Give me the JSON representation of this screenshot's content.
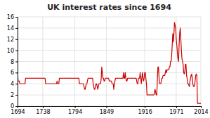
{
  "chart_data": {
    "type": "line",
    "title": "UK interest rates since 1694",
    "color": "#cc0000",
    "grid": true,
    "xlim": [
      1694,
      2014
    ],
    "ylim": [
      0,
      16
    ],
    "xticks": [
      1694,
      1738,
      1794,
      1849,
      1916,
      1971,
      2014
    ],
    "yticks": [
      0,
      2,
      4,
      6,
      8,
      10,
      12,
      14,
      16
    ],
    "x": [
      1694,
      1695,
      1696,
      1697,
      1698,
      1699,
      1700,
      1701,
      1702,
      1703,
      1704,
      1705,
      1706,
      1707,
      1708,
      1709,
      1710,
      1711,
      1712,
      1713,
      1714,
      1715,
      1716,
      1717,
      1718,
      1719,
      1720,
      1721,
      1722,
      1723,
      1724,
      1725,
      1726,
      1727,
      1728,
      1729,
      1730,
      1731,
      1732,
      1733,
      1734,
      1735,
      1736,
      1737,
      1738,
      1739,
      1740,
      1741,
      1742,
      1743,
      1744,
      1745,
      1746,
      1747,
      1748,
      1749,
      1750,
      1751,
      1752,
      1753,
      1754,
      1755,
      1756,
      1757,
      1758,
      1759,
      1760,
      1761,
      1762,
      1763,
      1764,
      1765,
      1766,
      1767,
      1768,
      1769,
      1770,
      1771,
      1772,
      1773,
      1774,
      1775,
      1776,
      1777,
      1778,
      1779,
      1780,
      1781,
      1782,
      1783,
      1784,
      1785,
      1786,
      1787,
      1788,
      1789,
      1790,
      1791,
      1792,
      1793,
      1794,
      1795,
      1796,
      1797,
      1798,
      1799,
      1800,
      1801,
      1802,
      1803,
      1804,
      1805,
      1806,
      1807,
      1808,
      1809,
      1810,
      1811,
      1812,
      1813,
      1814,
      1815,
      1816,
      1817,
      1818,
      1819,
      1820,
      1821,
      1822,
      1823,
      1824,
      1825,
      1826,
      1827,
      1828,
      1829,
      1830,
      1831,
      1832,
      1833,
      1834,
      1835,
      1836,
      1837,
      1838,
      1839,
      1840,
      1841,
      1842,
      1843,
      1844,
      1845,
      1846,
      1847,
      1848,
      1849,
      1850,
      1851,
      1852,
      1853,
      1854,
      1855,
      1856,
      1857,
      1858,
      1859,
      1860,
      1861,
      1862,
      1863,
      1864,
      1865,
      1866,
      1867,
      1868,
      1869,
      1870,
      1871,
      1872,
      1873,
      1874,
      1875,
      1876,
      1877,
      1878,
      1879,
      1880,
      1881,
      1882,
      1883,
      1884,
      1885,
      1886,
      1887,
      1888,
      1889,
      1890,
      1891,
      1892,
      1893,
      1894,
      1895,
      1896,
      1897,
      1898,
      1899,
      1900,
      1901,
      1902,
      1903,
      1904,
      1905,
      1906,
      1907,
      1908,
      1909,
      1910,
      1911,
      1912,
      1913,
      1914,
      1915,
      1916,
      1917,
      1918,
      1919,
      1920,
      1921,
      1922,
      1923,
      1924,
      1925,
      1926,
      1927,
      1928,
      1929,
      1930,
      1931,
      1932,
      1933,
      1934,
      1935,
      1936,
      1937,
      1938,
      1939,
      1940,
      1941,
      1942,
      1943,
      1944,
      1945,
      1946,
      1947,
      1948,
      1949,
      1950,
      1951,
      1952,
      1953,
      1954,
      1955,
      1956,
      1957,
      1958,
      1959,
      1960,
      1961,
      1962,
      1963,
      1964,
      1965,
      1966,
      1967,
      1968,
      1969,
      1970,
      1971,
      1972,
      1973,
      1974,
      1975,
      1976,
      1977,
      1978,
      1979,
      1980,
      1981,
      1982,
      1983,
      1984,
      1985,
      1986,
      1987,
      1988,
      1989,
      1990,
      1991,
      1992,
      1993,
      1994,
      1995,
      1996,
      1997,
      1998,
      1999,
      2000,
      2001,
      2002,
      2003,
      2004,
      2005,
      2006,
      2007,
      2008,
      2009,
      2010,
      2011,
      2012,
      2013,
      2014
    ],
    "values": [
      6.0,
      4.5,
      4.5,
      4.5,
      4.0,
      4.0,
      4.0,
      4.0,
      4.0,
      4.0,
      4.0,
      4.0,
      4.0,
      4.0,
      5.0,
      5.0,
      5.0,
      5.0,
      5.0,
      5.0,
      5.0,
      5.0,
      5.0,
      5.0,
      5.0,
      5.0,
      5.0,
      5.0,
      5.0,
      5.0,
      5.0,
      5.0,
      5.0,
      5.0,
      5.0,
      5.0,
      5.0,
      5.0,
      5.0,
      5.0,
      5.0,
      5.0,
      5.0,
      5.0,
      5.0,
      5.0,
      5.0,
      5.0,
      5.0,
      4.0,
      4.0,
      4.0,
      4.0,
      4.0,
      4.0,
      4.0,
      4.0,
      4.0,
      4.0,
      4.0,
      4.0,
      4.0,
      4.0,
      4.0,
      4.0,
      4.0,
      4.0,
      4.0,
      4.0,
      4.5,
      4.0,
      4.0,
      4.0,
      5.0,
      5.0,
      5.0,
      5.0,
      5.0,
      5.0,
      5.0,
      5.0,
      5.0,
      5.0,
      5.0,
      5.0,
      5.0,
      5.0,
      5.0,
      5.0,
      5.0,
      5.0,
      5.0,
      5.0,
      5.0,
      5.0,
      5.0,
      5.0,
      5.0,
      5.0,
      5.0,
      5.0,
      5.0,
      5.0,
      5.0,
      5.0,
      5.0,
      5.0,
      5.0,
      4.0,
      4.0,
      4.0,
      4.0,
      4.0,
      4.0,
      4.0,
      4.0,
      3.5,
      3.0,
      3.0,
      3.5,
      4.0,
      4.0,
      4.5,
      5.0,
      5.0,
      5.0,
      5.0,
      5.0,
      5.0,
      5.0,
      5.0,
      5.0,
      4.0,
      3.5,
      3.0,
      3.0,
      3.5,
      4.0,
      4.0,
      3.5,
      3.0,
      3.5,
      4.0,
      4.0,
      4.0,
      4.0,
      5.0,
      7.0,
      6.0,
      5.0,
      5.0,
      4.5,
      4.5,
      5.0,
      5.0,
      5.0,
      5.0,
      5.0,
      5.0,
      5.0,
      4.5,
      4.5,
      4.5,
      4.5,
      4.5,
      4.0,
      4.0,
      4.0,
      3.0,
      4.0,
      4.5,
      5.0,
      5.0,
      5.0,
      5.0,
      5.0,
      5.0,
      5.0,
      5.0,
      5.0,
      5.0,
      5.0,
      5.0,
      5.0,
      5.0,
      6.0,
      5.0,
      5.0,
      6.0,
      5.0,
      4.5,
      4.5,
      5.0,
      5.0,
      5.0,
      5.0,
      5.0,
      5.0,
      5.0,
      5.0,
      5.0,
      5.0,
      5.0,
      5.0,
      5.0,
      5.0,
      5.0,
      5.0,
      4.5,
      4.0,
      4.0,
      5.0,
      5.0,
      5.0,
      6.0,
      5.0,
      4.0,
      5.0,
      6.0,
      5.0,
      4.5,
      5.0,
      6.0,
      6.0,
      5.0,
      4.0,
      2.0,
      2.0,
      2.0,
      2.0,
      2.0,
      2.0,
      2.0,
      2.0,
      2.0,
      2.0,
      2.0,
      2.0,
      2.0,
      2.5,
      3.0,
      2.5,
      2.0,
      2.0,
      4.5,
      7.0,
      7.0,
      5.0,
      4.0,
      4.0,
      4.0,
      4.5,
      5.0,
      5.0,
      5.5,
      5.5,
      5.5,
      5.5,
      6.0,
      6.5,
      6.0,
      6.5,
      6.5,
      6.5,
      6.5,
      7.0,
      7.0,
      8.0,
      8.0,
      9.0,
      11.0,
      13.0,
      11.5,
      13.0,
      15.0,
      14.5,
      14.0,
      12.0,
      11.0,
      9.5,
      8.5,
      8.0,
      11.0,
      13.0,
      14.0,
      12.0,
      10.0,
      8.5,
      8.0,
      7.5,
      6.0,
      5.75,
      6.25,
      7.5,
      7.5,
      5.5,
      5.0,
      4.0,
      4.0,
      3.75,
      3.5,
      4.5,
      5.0,
      5.5,
      5.75,
      5.0,
      4.0,
      3.5,
      3.5,
      3.75,
      4.5,
      5.5,
      5.75,
      5.5,
      0.5,
      0.5,
      0.5,
      0.5,
      0.5,
      0.5,
      0.5
    ]
  }
}
